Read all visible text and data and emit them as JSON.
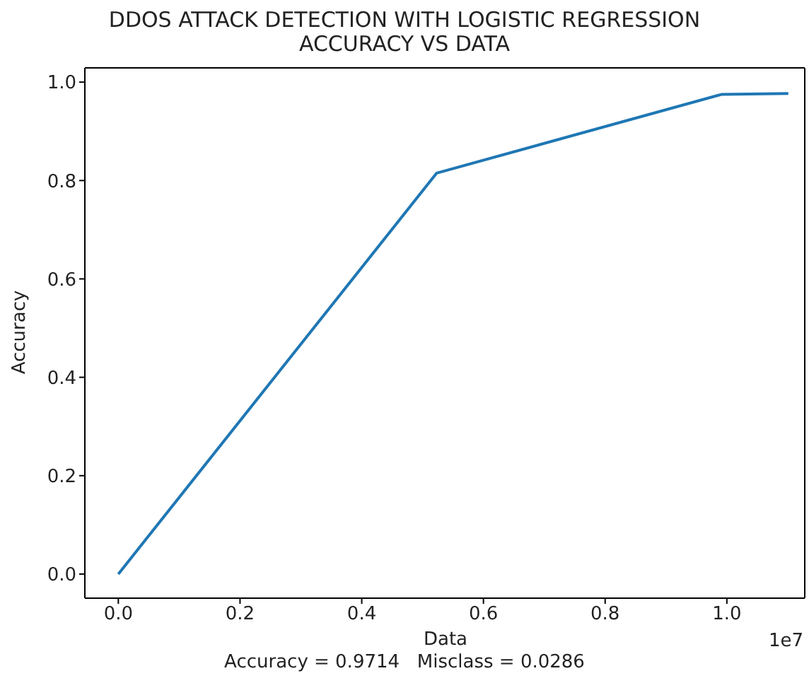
{
  "chart_data": {
    "type": "line",
    "title": "DDOS ATTACK DETECTION WITH LOGISTIC REGRESSION\nACCURACY VS DATA",
    "xlabel": "Data",
    "ylabel": "Accuracy",
    "annotations": [
      "Accuracy = 0.9714   Misclass = 0.0286",
      "1e7"
    ],
    "x": [
      0,
      0.523,
      0.991,
      1.101
    ],
    "series": [
      {
        "color": "#1f77b4",
        "values": [
          0,
          0.815,
          0.975,
          0.977
        ]
      }
    ],
    "xlim": [
      -0.055,
      1.128
    ],
    "xticks": [
      {
        "value": 0,
        "label": "0.0"
      },
      0.2,
      0.4,
      0.6,
      0.8,
      {
        "value": 1,
        "label": "1.0"
      }
    ],
    "ylim": [
      -0.049,
      1.029
    ],
    "yticks": [
      {
        "value": 0,
        "label": "0.0"
      },
      {
        "value": 0.2,
        "label": "0.2"
      },
      {
        "value": 0.4,
        "label": "0.4"
      },
      {
        "value": 0.6,
        "label": "0.6"
      },
      {
        "value": 0.8,
        "label": "0.8"
      },
      {
        "value": 1,
        "label": "1.0"
      }
    ],
    "grid": false,
    "legend": false,
    "marker": "none",
    "line_style": "solid"
  }
}
